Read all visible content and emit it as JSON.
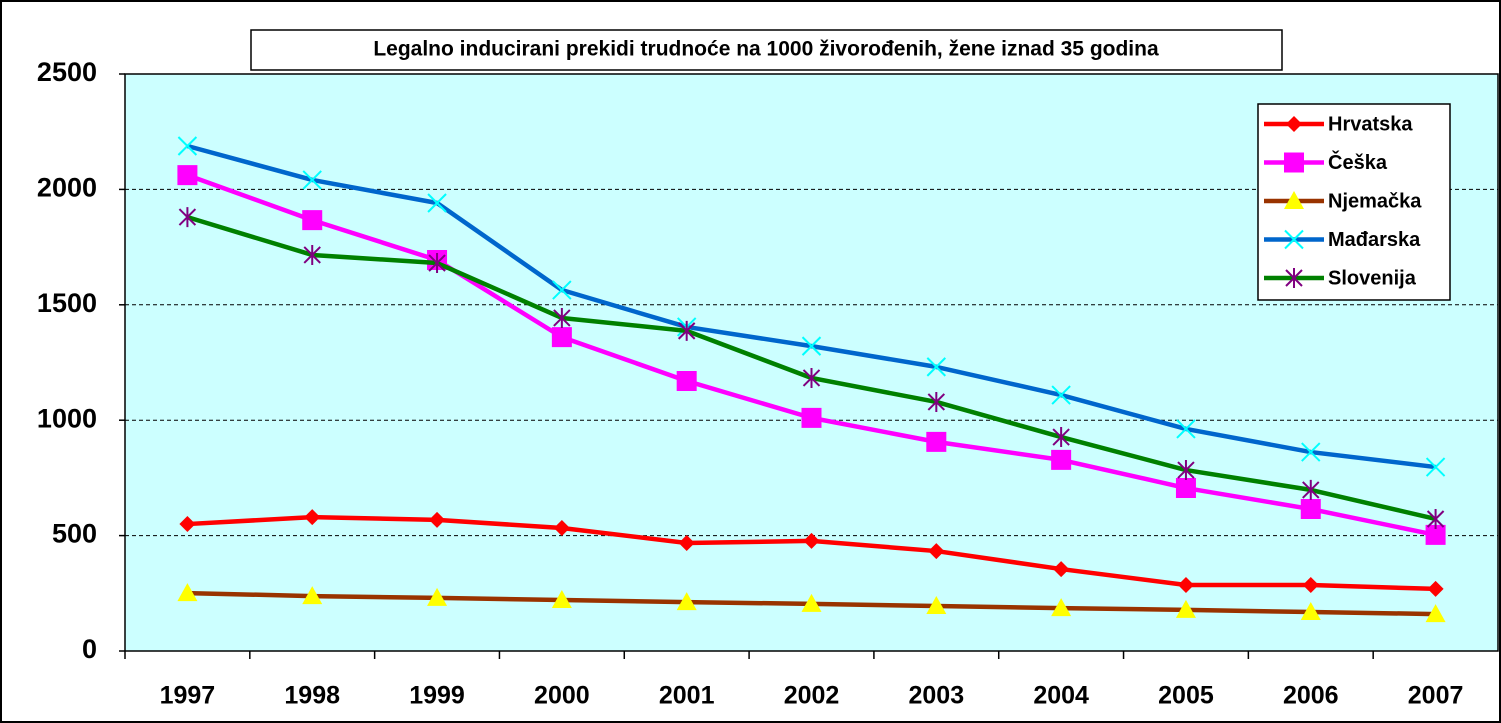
{
  "chart_data": {
    "type": "line",
    "title": "Legalno inducirani prekidi trudnoće na 1000 živorođenih, žene iznad 35 godina",
    "categories": [
      "1997",
      "1998",
      "1999",
      "2000",
      "2001",
      "2002",
      "2003",
      "2004",
      "2005",
      "2006",
      "2007"
    ],
    "series": [
      {
        "name": "Hrvatska",
        "color": "#ff0000",
        "marker": "diamond",
        "marker_color": "#ff0000",
        "values": [
          550,
          580,
          568,
          533,
          468,
          477,
          433,
          355,
          286,
          286,
          269
        ]
      },
      {
        "name": "Češka",
        "color": "#ff00ff",
        "marker": "square",
        "marker_color": "#ff00ff",
        "values": [
          2062,
          1867,
          1694,
          1360,
          1170,
          1010,
          906,
          828,
          706,
          615,
          503
        ]
      },
      {
        "name": "Njemačka",
        "color": "#993300",
        "marker": "triangle",
        "marker_color": "#ffff00",
        "values": [
          251,
          238,
          230,
          221,
          212,
          204,
          195,
          186,
          178,
          169,
          160
        ]
      },
      {
        "name": "Mađarska",
        "color": "#0066cc",
        "marker": "x",
        "marker_color": "#00ffff",
        "values": [
          2188,
          2041,
          1941,
          1564,
          1404,
          1321,
          1231,
          1109,
          962,
          862,
          797
        ]
      },
      {
        "name": "Slovenija",
        "color": "#008000",
        "marker": "star",
        "marker_color": "#800080",
        "values": [
          1880,
          1716,
          1681,
          1443,
          1387,
          1183,
          1079,
          927,
          784,
          698,
          572
        ]
      }
    ],
    "ylim": [
      0,
      2500
    ],
    "yticks": [
      0,
      500,
      1000,
      1500,
      2000,
      2500
    ],
    "grid": true,
    "legend": "upper right",
    "plot_background": "#ccffff"
  }
}
